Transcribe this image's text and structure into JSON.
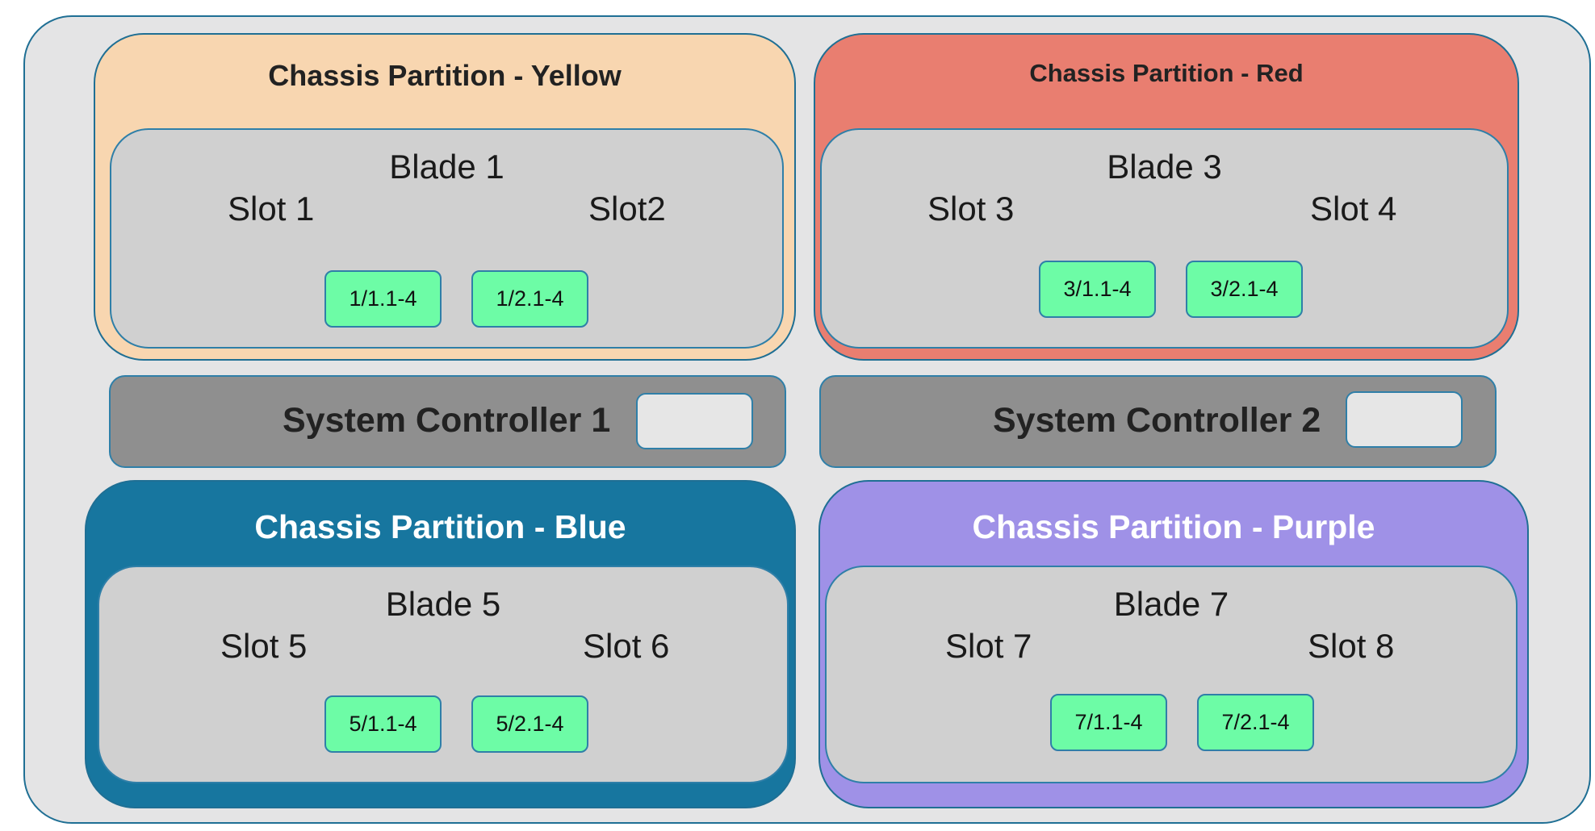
{
  "colors": {
    "frame": "#e4e4e5",
    "yellow": "#f8d6b0",
    "red": "#e97e70",
    "blue": "#17769f",
    "purple": "#9f91e7",
    "blade": "#d0d0d0",
    "port": "#6dfca6",
    "controller": "#8f8f8f"
  },
  "partitions": {
    "yellow": {
      "title": "Chassis Partition - Yellow",
      "blade": "Blade 1",
      "slot_a": "Slot 1",
      "slot_b": "Slot2",
      "port_a": "1/1.1-4",
      "port_b": "1/2.1-4"
    },
    "red": {
      "title": "Chassis Partition - Red",
      "blade": "Blade 3",
      "slot_a": "Slot 3",
      "slot_b": "Slot 4",
      "port_a": "3/1.1-4",
      "port_b": "3/2.1-4"
    },
    "blue": {
      "title": "Chassis Partition - Blue",
      "blade": "Blade 5",
      "slot_a": "Slot 5",
      "slot_b": "Slot 6",
      "port_a": "5/1.1-4",
      "port_b": "5/2.1-4"
    },
    "purple": {
      "title": "Chassis Partition - Purple",
      "blade": "Blade 7",
      "slot_a": "Slot 7",
      "slot_b": "Slot 8",
      "port_a": "7/1.1-4",
      "port_b": "7/2.1-4"
    }
  },
  "controllers": {
    "sc1": {
      "label": "System Controller 1"
    },
    "sc2": {
      "label": "System Controller 2"
    }
  }
}
